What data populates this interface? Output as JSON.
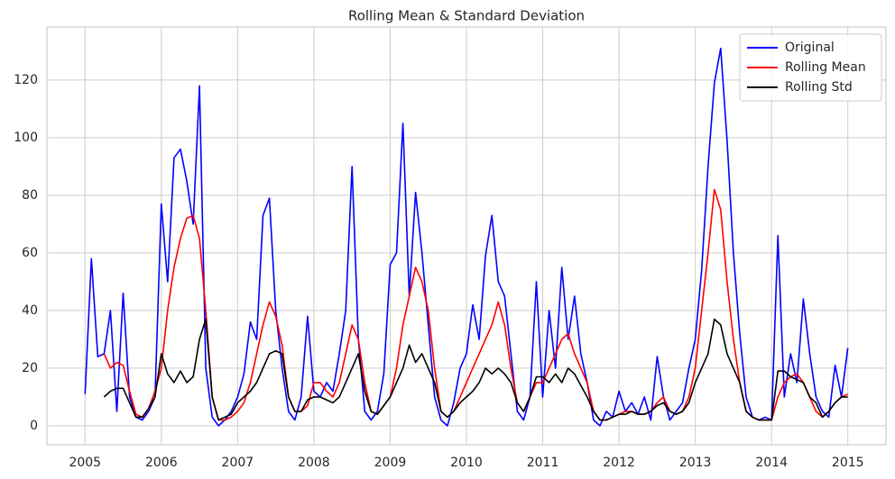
{
  "chart_data": {
    "type": "line",
    "title": "Rolling Mean & Standard Deviation",
    "x": [
      2005,
      2005.083,
      2005.167,
      2005.25,
      2005.333,
      2005.417,
      2005.5,
      2005.583,
      2005.667,
      2005.75,
      2005.833,
      2005.917,
      2006,
      2006.083,
      2006.167,
      2006.25,
      2006.333,
      2006.417,
      2006.5,
      2006.583,
      2006.667,
      2006.75,
      2006.833,
      2006.917,
      2007,
      2007.083,
      2007.167,
      2007.25,
      2007.333,
      2007.417,
      2007.5,
      2007.583,
      2007.667,
      2007.75,
      2007.833,
      2007.917,
      2008,
      2008.083,
      2008.167,
      2008.25,
      2008.333,
      2008.417,
      2008.5,
      2008.583,
      2008.667,
      2008.75,
      2008.833,
      2008.917,
      2009,
      2009.083,
      2009.167,
      2009.25,
      2009.333,
      2009.417,
      2009.5,
      2009.583,
      2009.667,
      2009.75,
      2009.833,
      2009.917,
      2010,
      2010.083,
      2010.167,
      2010.25,
      2010.333,
      2010.417,
      2010.5,
      2010.583,
      2010.667,
      2010.75,
      2010.833,
      2010.917,
      2011,
      2011.083,
      2011.167,
      2011.25,
      2011.333,
      2011.417,
      2011.5,
      2011.583,
      2011.667,
      2011.75,
      2011.833,
      2011.917,
      2012,
      2012.083,
      2012.167,
      2012.25,
      2012.333,
      2012.417,
      2012.5,
      2012.583,
      2012.667,
      2012.75,
      2012.833,
      2012.917,
      2013,
      2013.083,
      2013.167,
      2013.25,
      2013.333,
      2013.417,
      2013.5,
      2013.583,
      2013.667,
      2013.75,
      2013.833,
      2013.917,
      2014,
      2014.083,
      2014.167,
      2014.25,
      2014.333,
      2014.417,
      2014.5,
      2014.583,
      2014.667,
      2014.75,
      2014.833,
      2014.917,
      2015
    ],
    "series": [
      {
        "name": "Original",
        "color": "#0000ff",
        "values": [
          11,
          58,
          24,
          25,
          40,
          5,
          46,
          10,
          3,
          2,
          5,
          10,
          77,
          50,
          93,
          96,
          85,
          70,
          118,
          20,
          3,
          0,
          2,
          5,
          10,
          18,
          36,
          30,
          73,
          79,
          40,
          20,
          5,
          2,
          10,
          38,
          12,
          10,
          15,
          12,
          25,
          40,
          90,
          30,
          5,
          2,
          5,
          18,
          56,
          60,
          105,
          45,
          81,
          60,
          35,
          10,
          2,
          0,
          8,
          20,
          25,
          42,
          30,
          59,
          73,
          50,
          45,
          25,
          5,
          2,
          10,
          50,
          10,
          40,
          20,
          55,
          30,
          45,
          25,
          15,
          2,
          0,
          5,
          3,
          12,
          5,
          8,
          4,
          10,
          2,
          24,
          10,
          2,
          5,
          8,
          20,
          30,
          54,
          90,
          119,
          131,
          99,
          60,
          32,
          10,
          3,
          2,
          3,
          2,
          66,
          10,
          25,
          15,
          44,
          25,
          10,
          5,
          3,
          21,
          10,
          27
        ]
      },
      {
        "name": "Rolling Mean",
        "color": "#ff0000",
        "values": [
          null,
          null,
          null,
          25,
          20,
          22,
          21,
          12,
          4,
          3,
          6,
          12,
          20,
          40,
          55,
          65,
          72,
          73,
          65,
          40,
          10,
          2,
          2,
          3,
          5,
          8,
          15,
          25,
          35,
          43,
          38,
          28,
          10,
          5,
          5,
          7,
          15,
          15,
          12,
          10,
          15,
          25,
          35,
          30,
          15,
          5,
          4,
          7,
          10,
          20,
          35,
          45,
          55,
          50,
          40,
          20,
          5,
          3,
          5,
          10,
          15,
          20,
          25,
          30,
          35,
          43,
          35,
          20,
          8,
          5,
          10,
          15,
          15,
          20,
          25,
          30,
          32,
          25,
          20,
          15,
          5,
          2,
          2,
          3,
          4,
          5,
          5,
          4,
          4,
          5,
          8,
          10,
          5,
          4,
          5,
          10,
          20,
          40,
          60,
          82,
          75,
          50,
          30,
          15,
          5,
          3,
          2,
          2,
          2,
          10,
          15,
          17,
          18,
          15,
          10,
          5,
          3,
          5,
          8,
          10,
          11
        ]
      },
      {
        "name": "Rolling Std",
        "color": "#000000",
        "values": [
          null,
          null,
          null,
          10,
          12,
          13,
          13,
          8,
          3,
          3,
          6,
          10,
          25,
          18,
          15,
          19,
          15,
          17,
          30,
          37,
          10,
          2,
          3,
          4,
          8,
          10,
          12,
          15,
          20,
          25,
          26,
          25,
          10,
          5,
          5,
          9,
          10,
          10,
          9,
          8,
          10,
          15,
          20,
          25,
          12,
          5,
          4,
          7,
          10,
          15,
          20,
          28,
          22,
          25,
          20,
          15,
          5,
          3,
          5,
          8,
          10,
          12,
          15,
          20,
          18,
          20,
          18,
          15,
          8,
          5,
          10,
          17,
          17,
          15,
          18,
          15,
          20,
          18,
          14,
          10,
          5,
          2,
          2,
          3,
          4,
          4,
          5,
          4,
          4,
          5,
          7,
          8,
          5,
          4,
          5,
          8,
          15,
          20,
          25,
          37,
          35,
          25,
          20,
          15,
          5,
          3,
          2,
          2,
          2,
          19,
          19,
          17,
          16,
          15,
          10,
          8,
          3,
          5,
          8,
          10,
          10
        ]
      }
    ],
    "xlim": [
      2004.5,
      2015.5
    ],
    "xticks": [
      2005,
      2006,
      2007,
      2008,
      2009,
      2010,
      2011,
      2012,
      2013,
      2014,
      2015
    ],
    "ylim": [
      -6.6,
      138.4
    ],
    "yticks": [
      0,
      20,
      40,
      60,
      80,
      100,
      120
    ],
    "grid": true,
    "legend": "upper right"
  }
}
